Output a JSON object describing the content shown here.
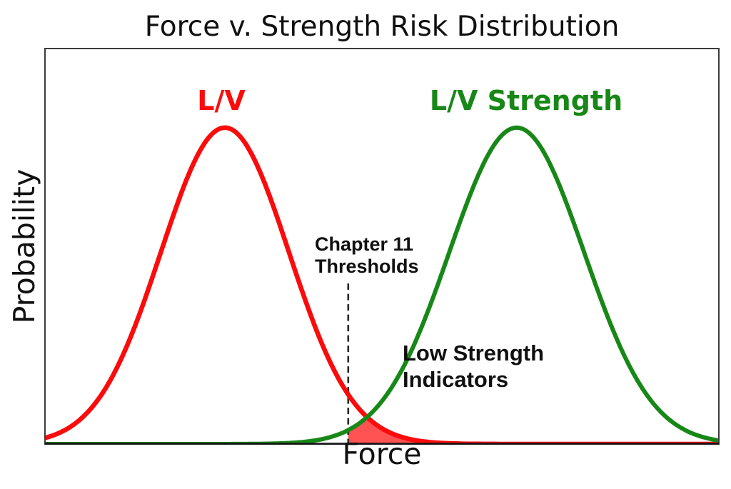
{
  "title": "Force v. Strength Risk Distribution",
  "axes": {
    "xlabel": "Force",
    "ylabel": "Probability"
  },
  "curve_labels": {
    "red": "L/V",
    "green": "L/V Strength"
  },
  "annotations": {
    "threshold_line1": "Chapter 11",
    "threshold_line2": "Thresholds",
    "indicators_line1": "Low Strength",
    "indicators_line2": "Indicators"
  },
  "colors": {
    "red_curve": "#fb0b0b",
    "green_curve": "#178817",
    "fill_red": "#ff0000",
    "fill_opacity": 0.68,
    "threshold_line": "#262626",
    "box_border": "#3c3c3c",
    "axis_line": "#151515",
    "text": "#101010"
  },
  "chart_data": {
    "type": "line",
    "title": "Force v. Strength Risk Distribution",
    "xlabel": "Force",
    "ylabel": "Probability",
    "xlim": [
      0,
      10
    ],
    "ylim": [
      0,
      1
    ],
    "grid": false,
    "ticks": "none",
    "series": [
      {
        "name": "L/V",
        "shape": "gaussian",
        "mean": 2.67,
        "sigma": 0.95,
        "amplitude": 0.8,
        "color": "#fb0b0b"
      },
      {
        "name": "L/V Strength",
        "shape": "gaussian",
        "mean": 7.0,
        "sigma": 1.0,
        "amplitude": 0.8,
        "color": "#178817"
      }
    ],
    "threshold": {
      "x": 4.5,
      "label": "Chapter 11 Thresholds",
      "style": "dashed",
      "line_top_y": 0.406
    },
    "shaded_region": {
      "description": "Area under the minimum of both curves to the right of the threshold (L/V tail overlap = Low Strength Indicators)",
      "x_start": 4.5,
      "x_end": 10,
      "color": "#ff0000",
      "opacity": 0.68
    }
  }
}
